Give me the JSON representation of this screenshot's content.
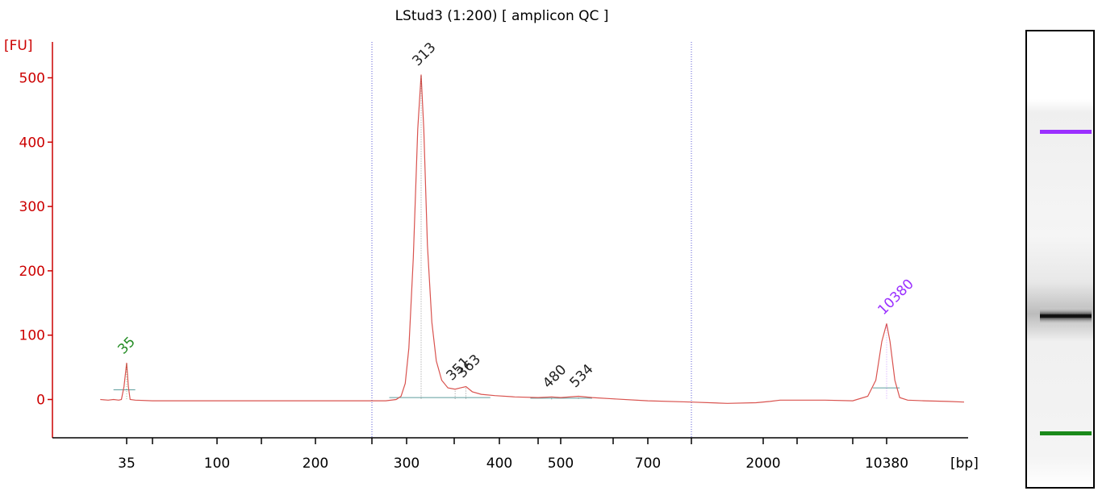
{
  "chart_data": {
    "type": "line",
    "title": "LStud3 (1:200)  [ amplicon QC ]",
    "ylabel": "[FU]",
    "xlabel": "[bp]",
    "ylim": [
      -60,
      530
    ],
    "y_ticks": [
      0,
      100,
      200,
      300,
      400,
      500
    ],
    "x_ticks": [
      {
        "label": "35",
        "value": 35
      },
      {
        "label": "",
        "value": 50
      },
      {
        "label": "100",
        "value": 100
      },
      {
        "label": "",
        "value": 150
      },
      {
        "label": "200",
        "value": 200
      },
      {
        "label": "",
        "value": 250
      },
      {
        "label": "300",
        "value": 300
      },
      {
        "label": "",
        "value": 350
      },
      {
        "label": "400",
        "value": 400
      },
      {
        "label": "",
        "value": 450
      },
      {
        "label": "500",
        "value": 500
      },
      {
        "label": "",
        "value": 600
      },
      {
        "label": "700",
        "value": 700
      },
      {
        "label": "",
        "value": 1000
      },
      {
        "label": "2000",
        "value": 2000
      },
      {
        "label": "",
        "value": 3000
      },
      {
        "label": "",
        "value": 7000
      },
      {
        "label": "10380",
        "value": 10380
      }
    ],
    "region_markers_bp": [
      250,
      1000
    ],
    "series": [
      {
        "color": "#d9534f",
        "points": [
          [
            25,
            0
          ],
          [
            28,
            -1
          ],
          [
            30,
            0
          ],
          [
            32,
            -1
          ],
          [
            33,
            0
          ],
          [
            34,
            20
          ],
          [
            35,
            57
          ],
          [
            36,
            20
          ],
          [
            37,
            0
          ],
          [
            40,
            -1
          ],
          [
            50,
            -2
          ],
          [
            100,
            -2
          ],
          [
            150,
            -2
          ],
          [
            200,
            -2
          ],
          [
            250,
            -2
          ],
          [
            270,
            -2
          ],
          [
            285,
            0
          ],
          [
            292,
            5
          ],
          [
            298,
            25
          ],
          [
            302,
            80
          ],
          [
            306,
            220
          ],
          [
            310,
            420
          ],
          [
            313,
            505
          ],
          [
            316,
            420
          ],
          [
            320,
            240
          ],
          [
            325,
            120
          ],
          [
            330,
            60
          ],
          [
            336,
            30
          ],
          [
            343,
            18
          ],
          [
            351,
            16
          ],
          [
            357,
            18
          ],
          [
            363,
            20
          ],
          [
            370,
            12
          ],
          [
            380,
            8
          ],
          [
            395,
            6
          ],
          [
            420,
            4
          ],
          [
            450,
            3
          ],
          [
            480,
            4
          ],
          [
            500,
            3
          ],
          [
            534,
            5
          ],
          [
            560,
            3
          ],
          [
            600,
            1
          ],
          [
            700,
            -2
          ],
          [
            1000,
            -4
          ],
          [
            1500,
            -6
          ],
          [
            1900,
            -5
          ],
          [
            2200,
            -3
          ],
          [
            2500,
            -1
          ],
          [
            3000,
            -1
          ],
          [
            5000,
            -1
          ],
          [
            7000,
            -2
          ],
          [
            8500,
            5
          ],
          [
            9300,
            30
          ],
          [
            9900,
            90
          ],
          [
            10380,
            118
          ],
          [
            10800,
            90
          ],
          [
            11400,
            30
          ],
          [
            12000,
            3
          ],
          [
            13000,
            -1
          ],
          [
            15000,
            -2
          ],
          [
            18000,
            -3
          ],
          [
            20000,
            -4
          ]
        ]
      }
    ],
    "peak_labels": [
      {
        "label": "35",
        "bp": 35,
        "fu": 57,
        "color": "#228b22"
      },
      {
        "label": "313",
        "bp": 313,
        "fu": 505,
        "color": "#222222"
      },
      {
        "label": "351",
        "bp": 351,
        "fu": 16,
        "color": "#222222"
      },
      {
        "label": "363",
        "bp": 363,
        "fu": 20,
        "color": "#222222"
      },
      {
        "label": "480",
        "bp": 480,
        "fu": 4,
        "color": "#222222"
      },
      {
        "label": "534",
        "bp": 534,
        "fu": 5,
        "color": "#222222"
      },
      {
        "label": "10380",
        "bp": 10380,
        "fu": 118,
        "color": "#9b30ff"
      }
    ],
    "gel": {
      "band_colors": {
        "upper_marker": "#9b30ff",
        "sample": "#111111",
        "lower_marker": "#1a8a1a"
      }
    }
  }
}
